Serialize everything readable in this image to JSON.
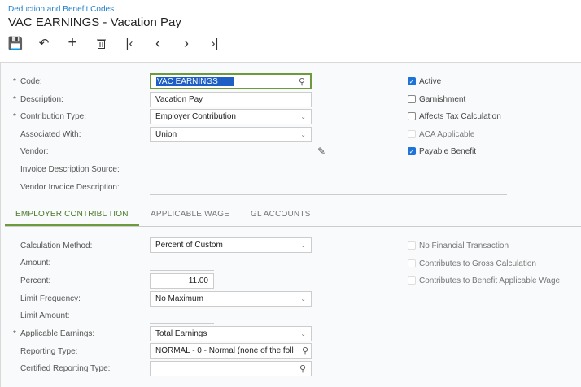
{
  "breadcrumb": "Deduction and Benefit Codes",
  "title": "VAC EARNINGS - Vacation Pay",
  "toolbar": {
    "save": "save-icon",
    "undo": "undo-icon",
    "add": "plus-icon",
    "delete": "trash-icon",
    "first": "first-icon",
    "prev": "prev-icon",
    "next": "next-icon",
    "last": "last-icon"
  },
  "form": {
    "code_label": "Code:",
    "code_value": "VAC EARNINGS",
    "description_label": "Description:",
    "description_value": "Vacation Pay",
    "contribution_type_label": "Contribution Type:",
    "contribution_type_value": "Employer Contribution",
    "associated_with_label": "Associated With:",
    "associated_with_value": "Union",
    "vendor_label": "Vendor:",
    "invoice_description_source_label": "Invoice Description Source:",
    "vendor_invoice_description_label": "Vendor Invoice Description:"
  },
  "checkboxes": [
    {
      "label": "Active",
      "checked": true
    },
    {
      "label": "Garnishment",
      "checked": false
    },
    {
      "label": "Affects Tax Calculation",
      "checked": false
    },
    {
      "label": "ACA Applicable",
      "checked": false,
      "disabled": true
    },
    {
      "label": "Payable Benefit",
      "checked": true
    }
  ],
  "tabs": [
    {
      "label": "EMPLOYER CONTRIBUTION",
      "active": true
    },
    {
      "label": "APPLICABLE WAGE"
    },
    {
      "label": "GL ACCOUNTS"
    }
  ],
  "contribution": {
    "calculation_method_label": "Calculation Method:",
    "calculation_method_value": "Percent of Custom",
    "amount_label": "Amount:",
    "percent_label": "Percent:",
    "percent_value": "11.00",
    "limit_frequency_label": "Limit Frequency:",
    "limit_frequency_value": "No Maximum",
    "limit_amount_label": "Limit Amount:",
    "applicable_earnings_label": "Applicable Earnings:",
    "applicable_earnings_value": "Total Earnings",
    "reporting_type_label": "Reporting Type:",
    "reporting_type_value": "NORMAL - 0 - Normal (none of the foll",
    "certified_reporting_type_label": "Certified Reporting Type:",
    "certified_reporting_type_value": ""
  },
  "contribution_checkboxes": [
    {
      "label": "No Financial Transaction",
      "checked": false,
      "disabled": true
    },
    {
      "label": "Contributes to Gross Calculation",
      "checked": false,
      "disabled": true
    },
    {
      "label": "Contributes to Benefit Applicable Wage",
      "checked": false,
      "disabled": true
    }
  ]
}
